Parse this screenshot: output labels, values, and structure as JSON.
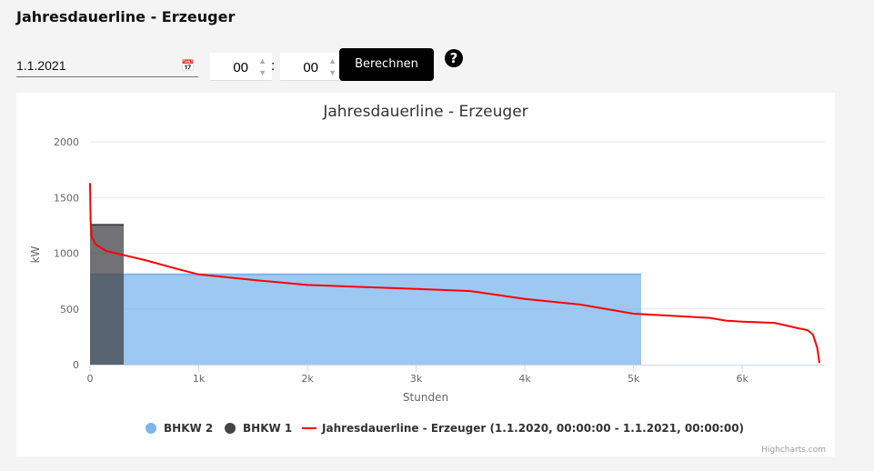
{
  "page": {
    "title": "Jahresdauerline - Erzeuger"
  },
  "form": {
    "date_value": "1.1.2021",
    "hour_value": "00",
    "minute_value": "00",
    "separator": ":",
    "calculate_label": "Berechnen",
    "help_label": "?"
  },
  "chart_data": {
    "type": "area",
    "title": "Jahresdauerline - Erzeuger",
    "xlabel": "Stunden",
    "ylabel": "kW",
    "xlim": [
      0,
      6760
    ],
    "ylim": [
      0,
      2000
    ],
    "xticks": [
      0,
      1000,
      2000,
      3000,
      4000,
      5000,
      6000
    ],
    "xtick_labels": [
      "0",
      "1k",
      "2k",
      "3k",
      "4k",
      "5k",
      "6k"
    ],
    "yticks": [
      0,
      500,
      1000,
      1500,
      2000
    ],
    "ytick_labels": [
      "0",
      "500",
      "1000",
      "1500",
      "2000"
    ],
    "grid": true,
    "legend_position": "bottom",
    "credits": "Highcharts.com",
    "series": [
      {
        "name": "BHKW 2",
        "type": "area",
        "color": "#7cb5ec",
        "x": [
          0,
          5070
        ],
        "y": [
          810,
          810
        ]
      },
      {
        "name": "BHKW 1",
        "type": "area",
        "color": "#434348",
        "x": [
          0,
          310
        ],
        "y": [
          1255,
          1255
        ]
      },
      {
        "name": "Jahresdauerline - Erzeuger (1.1.2020, 00:00:00 - 1.1.2021, 00:00:00)",
        "type": "line",
        "color": "#ff0000",
        "x": [
          0,
          5,
          15,
          50,
          150,
          300,
          500,
          800,
          1000,
          1500,
          2000,
          3000,
          3500,
          4000,
          4500,
          5000,
          5500,
          5700,
          5850,
          6000,
          6300,
          6500,
          6600,
          6650,
          6690,
          6710
        ],
        "y": [
          1630,
          1300,
          1150,
          1080,
          1020,
          985,
          940,
          860,
          810,
          760,
          715,
          680,
          660,
          590,
          540,
          457,
          430,
          420,
          395,
          385,
          375,
          330,
          310,
          270,
          150,
          15
        ]
      }
    ]
  }
}
